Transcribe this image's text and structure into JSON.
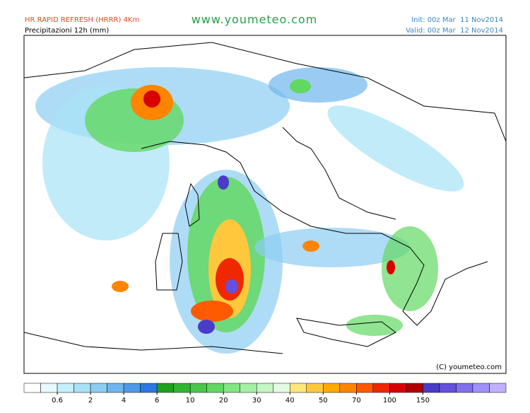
{
  "header": {
    "model": "HR RAPID REFRESH (HRRR) 4Km",
    "product": "Precipitazioni 12h (mm)",
    "site": "www.youmeteo.com",
    "init": "Init: 00z Mar  11 Nov2014",
    "valid": "Valid: 00z Mar  12 Nov2014"
  },
  "map": {
    "credit": "(C) youmeteo.com"
  },
  "legend": {
    "colors": [
      "#ffffff",
      "#e4fafd",
      "#c4f0fa",
      "#a8e2f6",
      "#8ccdf2",
      "#6fb6ee",
      "#4f9ae8",
      "#2a78e0",
      "#1fa01f",
      "#33b533",
      "#48c848",
      "#62d862",
      "#82e682",
      "#a4f0a4",
      "#c4f6c4",
      "#e2fbe2",
      "#ffe67a",
      "#ffc83c",
      "#ffaa00",
      "#ff8400",
      "#ff5a00",
      "#f02800",
      "#d80000",
      "#b00000",
      "#4a3cc8",
      "#6450dc",
      "#8070ee",
      "#a090fa",
      "#c0b0ff"
    ],
    "ticks": [
      0.6,
      2,
      4,
      6,
      10,
      20,
      30,
      40,
      50,
      70,
      100,
      150
    ]
  }
}
